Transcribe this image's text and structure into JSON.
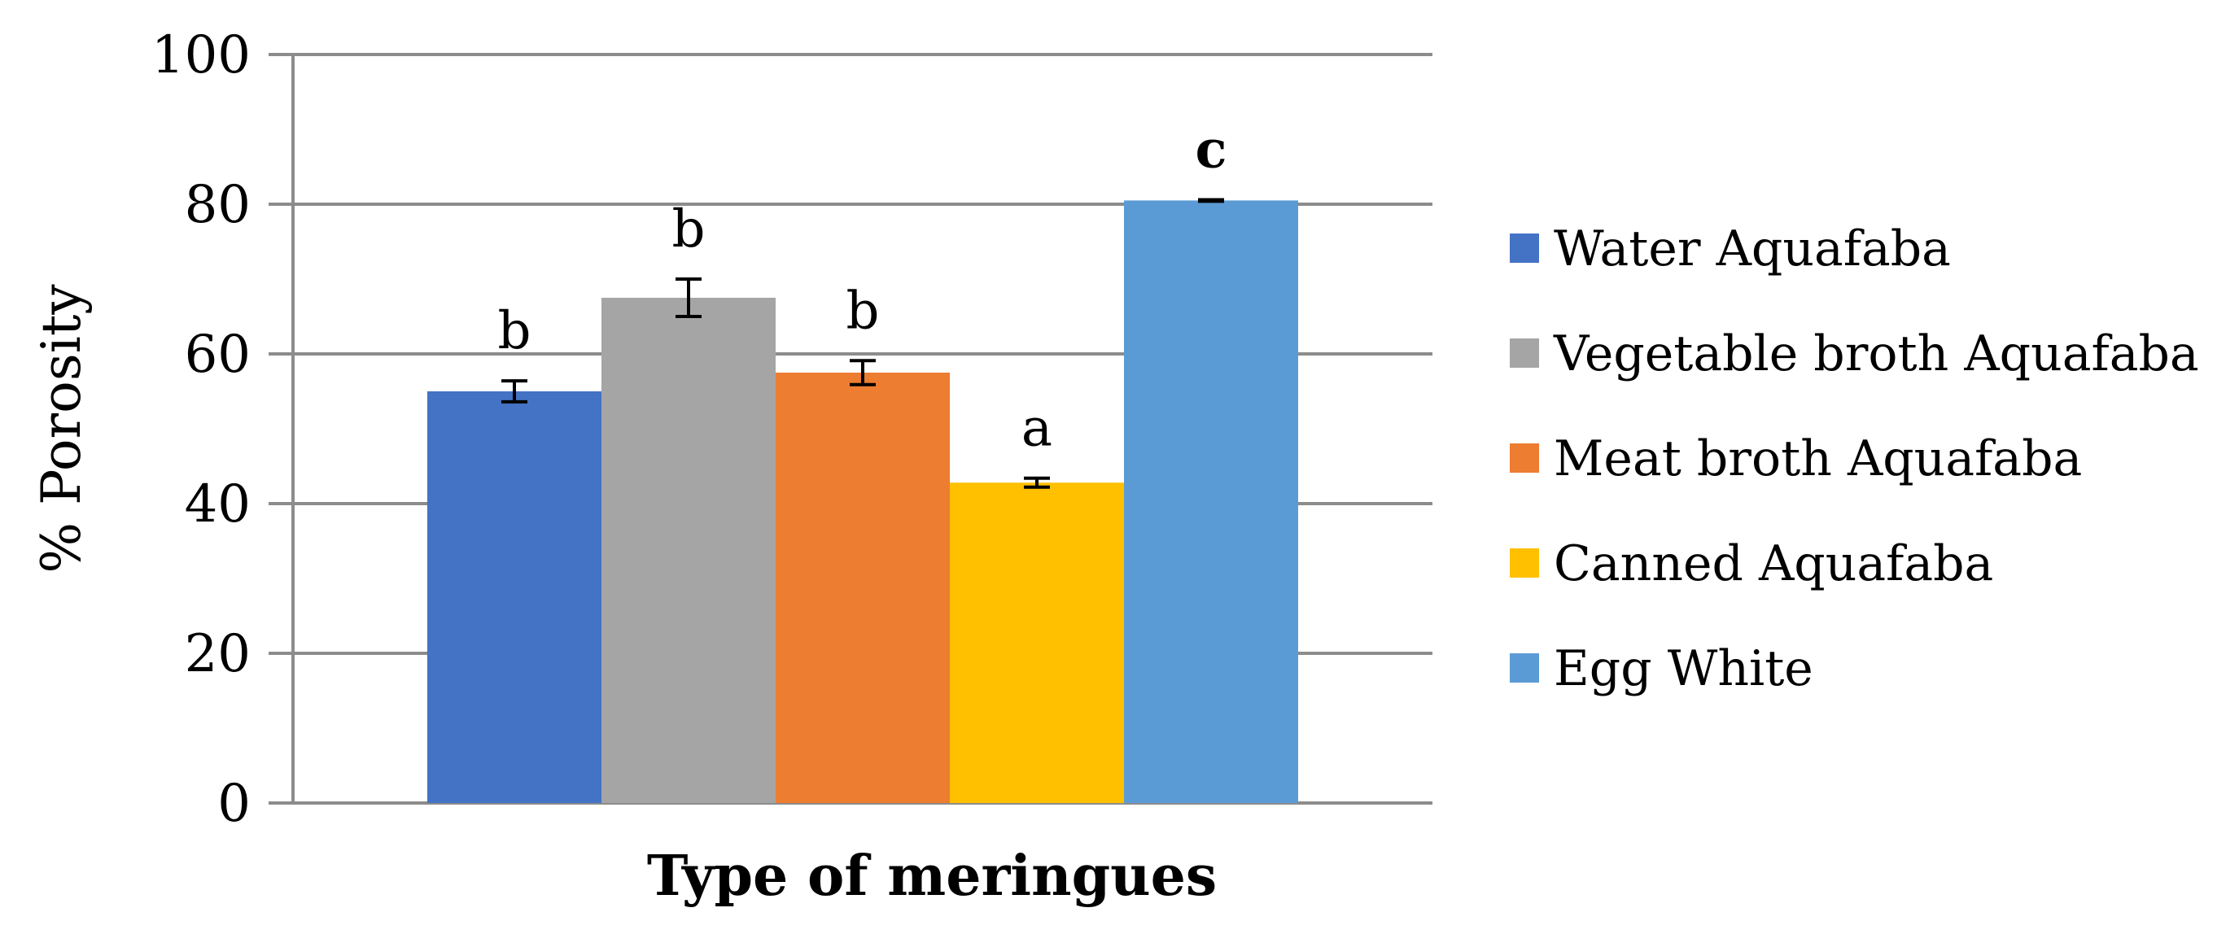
{
  "chart_data": {
    "type": "bar",
    "title": "",
    "xlabel": "Type of meringues",
    "ylabel": "% Porosity",
    "ylim": [
      0,
      100
    ],
    "yticks": [
      0,
      20,
      40,
      60,
      80,
      100
    ],
    "grid": true,
    "legend_position": "right",
    "series": [
      {
        "name": "Water Aquafaba",
        "value": 55,
        "error": 1.4,
        "sig": "b",
        "sig_bold": false,
        "color": "#4472C4"
      },
      {
        "name": "Vegetable broth Aquafaba",
        "value": 67.5,
        "error": 2.5,
        "sig": "b",
        "sig_bold": false,
        "color": "#A5A5A5"
      },
      {
        "name": "Meat broth Aquafaba",
        "value": 57.5,
        "error": 1.6,
        "sig": "b",
        "sig_bold": false,
        "color": "#ED7D31"
      },
      {
        "name": "Canned Aquafaba",
        "value": 42.8,
        "error": 0.6,
        "sig": "a",
        "sig_bold": false,
        "color": "#FFC000"
      },
      {
        "name": "Egg White",
        "value": 80.5,
        "error": 0.1,
        "sig": "c",
        "sig_bold": true,
        "color": "#5B9BD5"
      }
    ]
  }
}
